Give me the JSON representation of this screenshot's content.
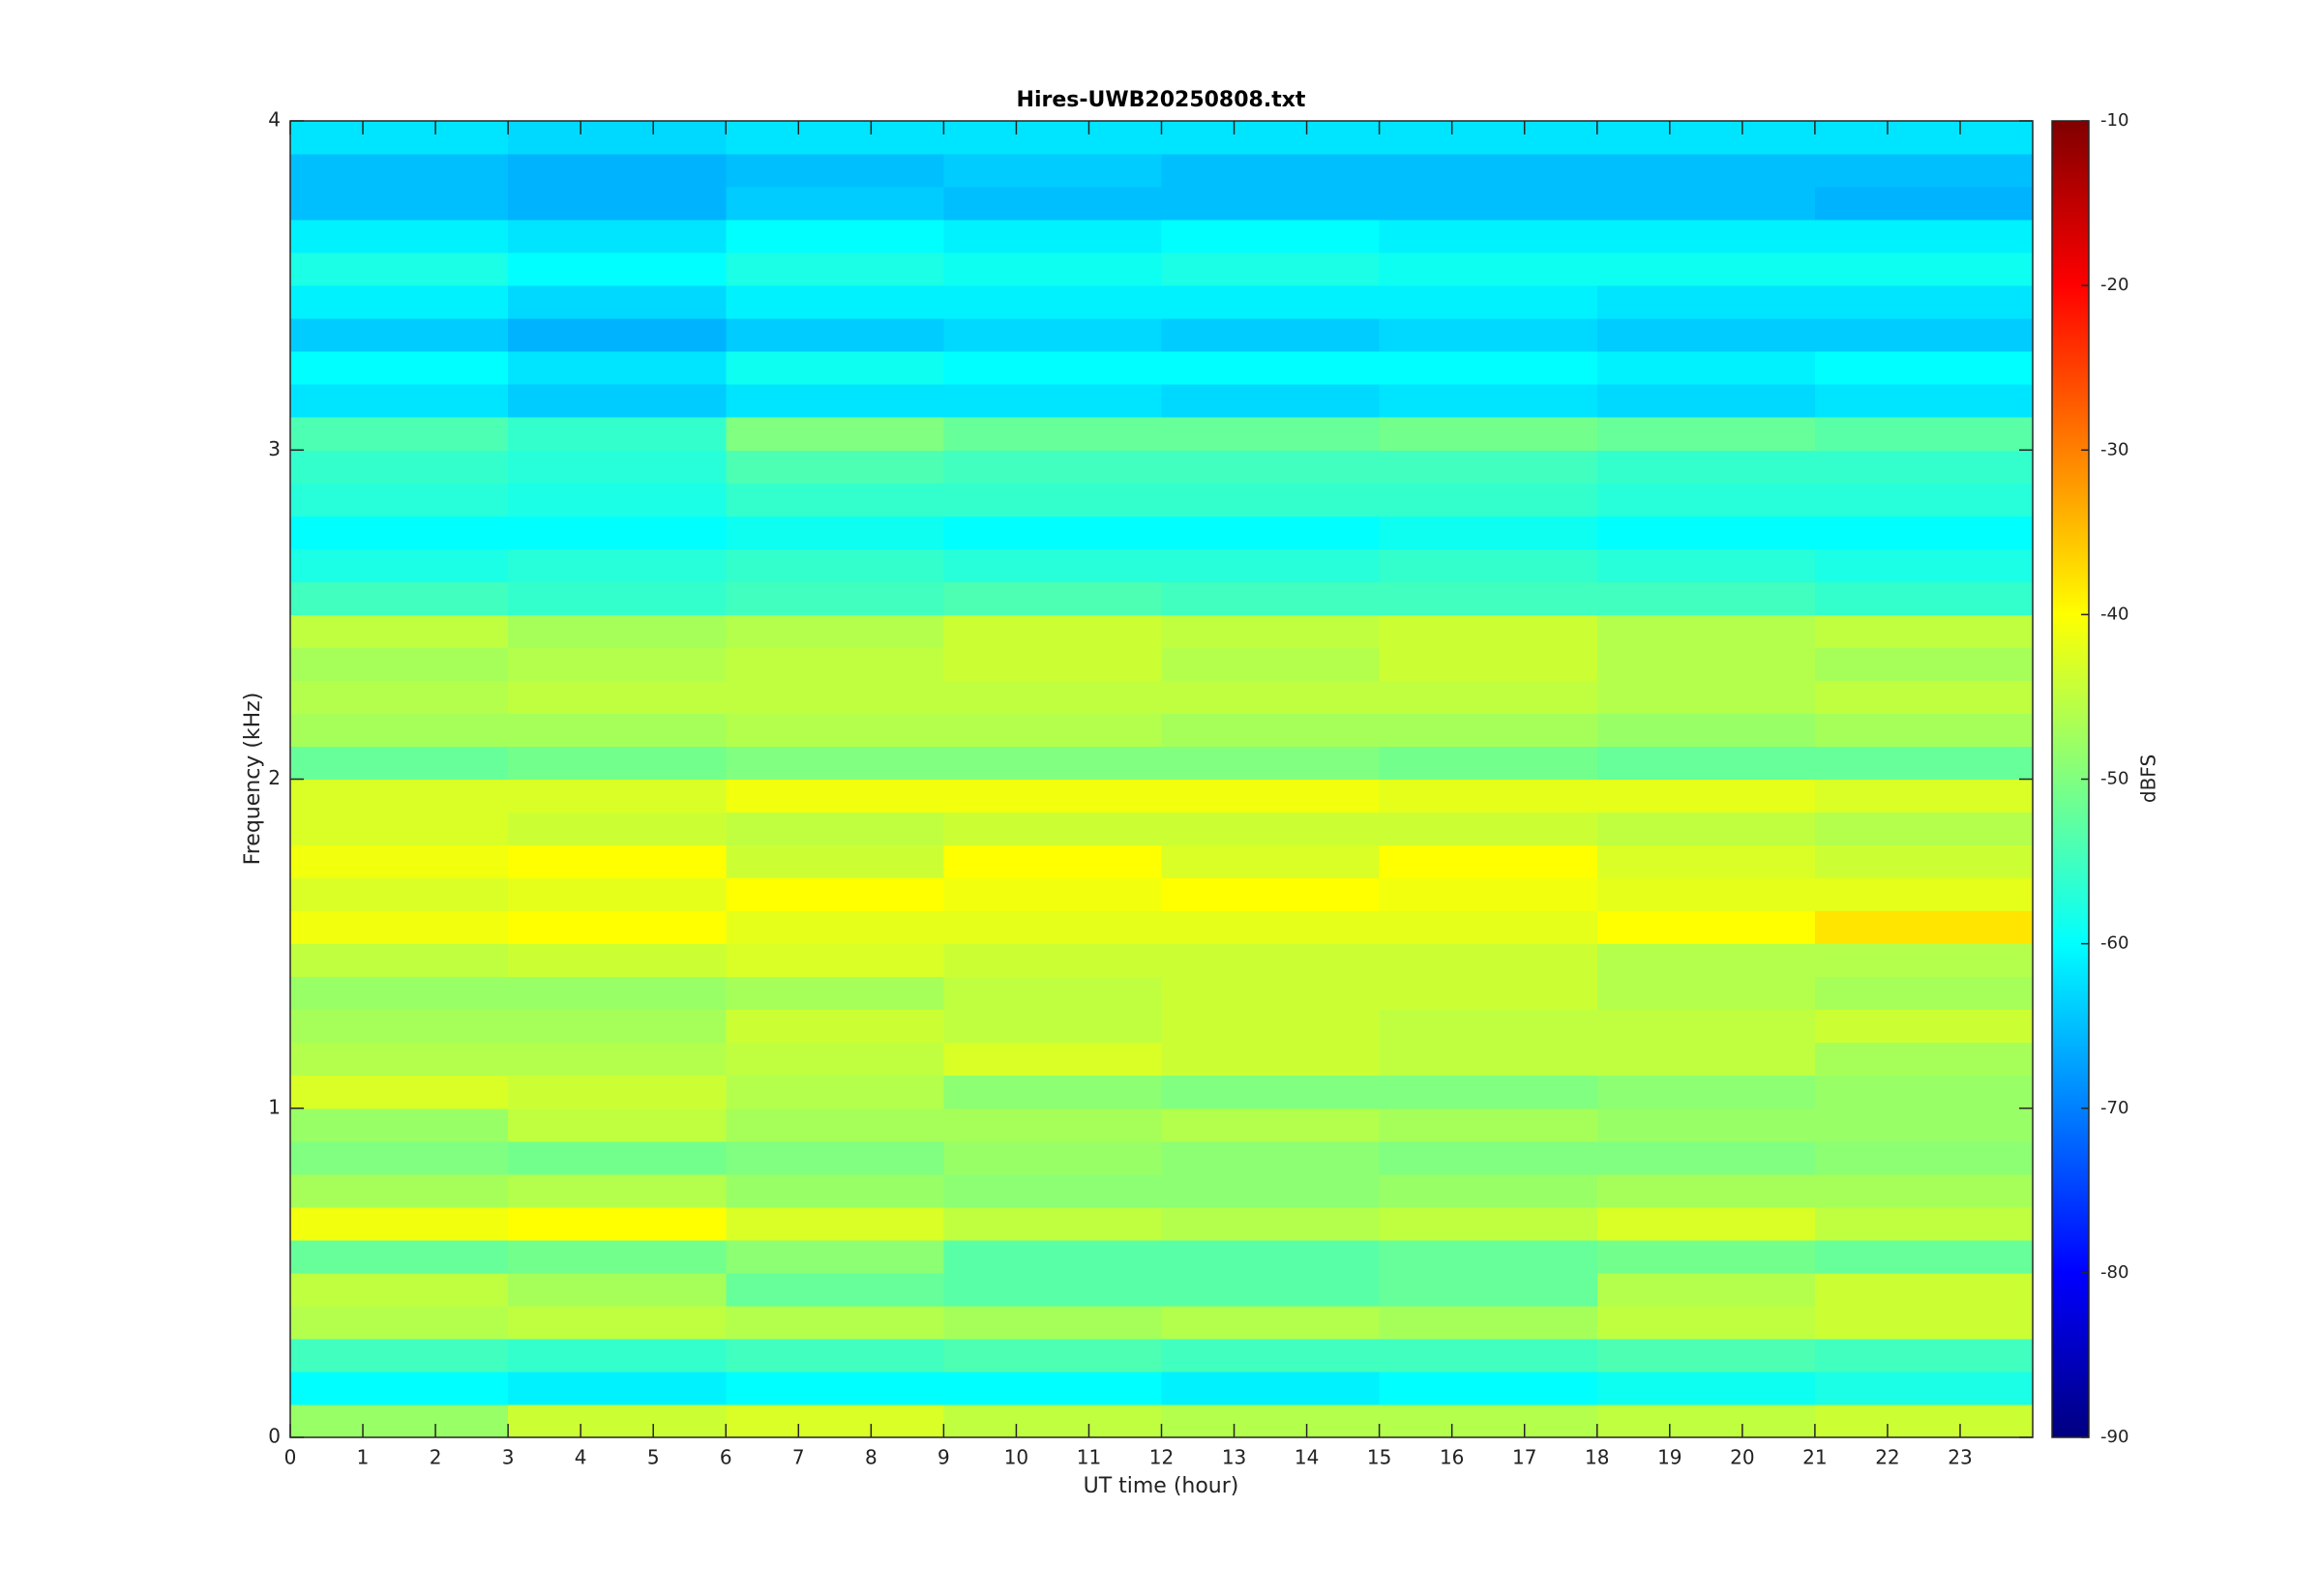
{
  "chart_data": {
    "type": "heatmap",
    "title": "Hires-UWB20250808.txt",
    "xlabel": "UT time (hour)",
    "ylabel": "Frequency (kHz)",
    "colorbar_label": "dBFS",
    "colormap": "jet",
    "x": [
      1.5,
      4.5,
      7.5,
      10.5,
      13.5,
      16.5,
      19.5,
      22.5
    ],
    "y": [
      0.05,
      0.15,
      0.25,
      0.35,
      0.45,
      0.55,
      0.65,
      0.75,
      0.85,
      0.95,
      1.05,
      1.15,
      1.25,
      1.35,
      1.45,
      1.55,
      1.65,
      1.75,
      1.85,
      1.95,
      2.05,
      2.15,
      2.25,
      2.35,
      2.45,
      2.55,
      2.65,
      2.75,
      2.85,
      2.95,
      3.05,
      3.15,
      3.25,
      3.35,
      3.45,
      3.55,
      3.65,
      3.75,
      3.85,
      3.95
    ],
    "z": [
      [
        -48,
        -44,
        -43,
        -45,
        -46,
        -46,
        -45,
        -44
      ],
      [
        -60,
        -61,
        -60,
        -60,
        -61,
        -60,
        -59,
        -58
      ],
      [
        -55,
        -56,
        -55,
        -54,
        -55,
        -55,
        -54,
        -55
      ],
      [
        -46,
        -45,
        -46,
        -47,
        -46,
        -47,
        -45,
        -44
      ],
      [
        -45,
        -47,
        -52,
        -53,
        -53,
        -52,
        -46,
        -44
      ],
      [
        -52,
        -51,
        -49,
        -53,
        -53,
        -52,
        -51,
        -52
      ],
      [
        -41,
        -40,
        -43,
        -45,
        -46,
        -45,
        -43,
        -45
      ],
      [
        -47,
        -46,
        -48,
        -49,
        -49,
        -48,
        -47,
        -47
      ],
      [
        -50,
        -51,
        -50,
        -48,
        -49,
        -50,
        -50,
        -49
      ],
      [
        -48,
        -45,
        -47,
        -47,
        -46,
        -47,
        -48,
        -48
      ],
      [
        -43,
        -44,
        -46,
        -49,
        -50,
        -50,
        -49,
        -48
      ],
      [
        -46,
        -46,
        -45,
        -43,
        -44,
        -45,
        -45,
        -47
      ],
      [
        -47,
        -47,
        -44,
        -45,
        -44,
        -45,
        -45,
        -44
      ],
      [
        -48,
        -48,
        -47,
        -45,
        -44,
        -44,
        -46,
        -47
      ],
      [
        -45,
        -44,
        -43,
        -44,
        -44,
        -44,
        -46,
        -46
      ],
      [
        -41,
        -40,
        -42,
        -42,
        -42,
        -42,
        -40,
        -38
      ],
      [
        -43,
        -42,
        -40,
        -41,
        -40,
        -41,
        -42,
        -42
      ],
      [
        -41,
        -40,
        -44,
        -40,
        -43,
        -40,
        -43,
        -44
      ],
      [
        -43,
        -44,
        -45,
        -44,
        -44,
        -44,
        -45,
        -46
      ],
      [
        -43,
        -43,
        -41,
        -41,
        -41,
        -42,
        -42,
        -43
      ],
      [
        -52,
        -51,
        -50,
        -50,
        -50,
        -51,
        -52,
        -52
      ],
      [
        -47,
        -47,
        -46,
        -46,
        -47,
        -47,
        -48,
        -47
      ],
      [
        -46,
        -45,
        -45,
        -45,
        -45,
        -45,
        -46,
        -45
      ],
      [
        -47,
        -46,
        -45,
        -44,
        -46,
        -44,
        -46,
        -47
      ],
      [
        -45,
        -47,
        -46,
        -44,
        -45,
        -44,
        -46,
        -45
      ],
      [
        -55,
        -56,
        -55,
        -54,
        -55,
        -55,
        -55,
        -56
      ],
      [
        -58,
        -57,
        -56,
        -57,
        -57,
        -56,
        -57,
        -58
      ],
      [
        -60,
        -60,
        -59,
        -60,
        -60,
        -59,
        -60,
        -60
      ],
      [
        -57,
        -58,
        -56,
        -56,
        -56,
        -56,
        -57,
        -57
      ],
      [
        -56,
        -57,
        -54,
        -55,
        -55,
        -55,
        -56,
        -56
      ],
      [
        -54,
        -56,
        -50,
        -52,
        -52,
        -51,
        -52,
        -53
      ],
      [
        -62,
        -64,
        -62,
        -62,
        -63,
        -62,
        -63,
        -62
      ],
      [
        -60,
        -62,
        -59,
        -60,
        -60,
        -60,
        -61,
        -60
      ],
      [
        -64,
        -66,
        -64,
        -63,
        -64,
        -63,
        -64,
        -64
      ],
      [
        -61,
        -63,
        -61,
        -61,
        -61,
        -61,
        -62,
        -62
      ],
      [
        -58,
        -60,
        -58,
        -59,
        -58,
        -59,
        -59,
        -59
      ],
      [
        -61,
        -62,
        -60,
        -61,
        -60,
        -61,
        -61,
        -61
      ],
      [
        -65,
        -66,
        -64,
        -65,
        -65,
        -65,
        -65,
        -66
      ],
      [
        -65,
        -66,
        -65,
        -64,
        -65,
        -65,
        -65,
        -65
      ],
      [
        -62,
        -63,
        -62,
        -62,
        -62,
        -62,
        -62,
        -62
      ]
    ],
    "xlim": [
      0,
      24
    ],
    "xticks": [
      0,
      1,
      2,
      3,
      4,
      5,
      6,
      7,
      8,
      9,
      10,
      11,
      12,
      13,
      14,
      15,
      16,
      17,
      18,
      19,
      20,
      21,
      22,
      23
    ],
    "ylim": [
      0,
      4
    ],
    "yticks": [
      0,
      1,
      2,
      3,
      4
    ],
    "clim": [
      -90,
      -10
    ],
    "cticks": [
      -90,
      -80,
      -70,
      -60,
      -50,
      -40,
      -30,
      -20,
      -10
    ]
  }
}
